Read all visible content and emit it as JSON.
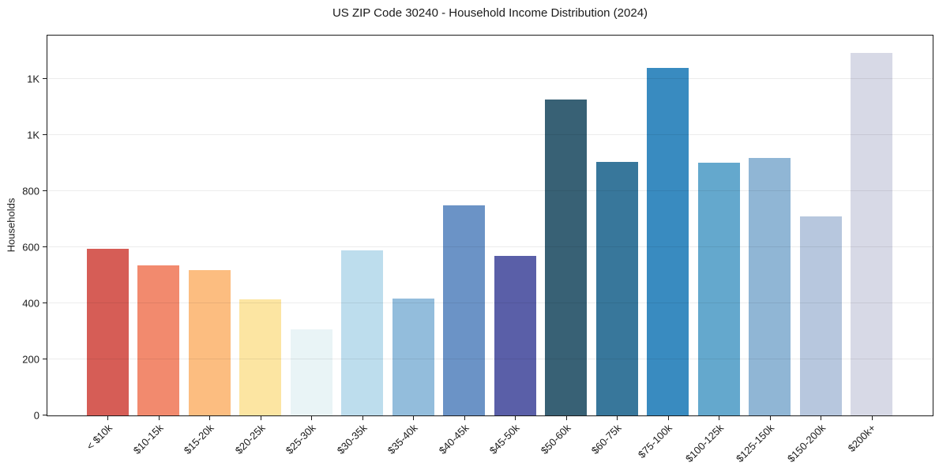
{
  "chart_data": {
    "type": "bar",
    "title": "US ZIP Code 30240 - Household Income Distribution (2024)",
    "xlabel": "",
    "ylabel": "Households",
    "categories": [
      "< $10k",
      "$10-15k",
      "$15-20k",
      "$20-25k",
      "$25-30k",
      "$30-35k",
      "$35-40k",
      "$40-45k",
      "$45-50k",
      "$50-60k",
      "$60-75k",
      "$75-100k",
      "$100-125k",
      "$125-150k",
      "$150-200k",
      "$200k+"
    ],
    "values": [
      595,
      535,
      518,
      415,
      306,
      588,
      417,
      750,
      568,
      1126,
      904,
      1239,
      902,
      918,
      709,
      1292
    ],
    "bar_colors": [
      "#d65d56",
      "#f28a6e",
      "#fcbd80",
      "#fce5a2",
      "#e9f4f6",
      "#bddded",
      "#93bddc",
      "#6b93c6",
      "#5a5fa8",
      "#386175",
      "#38779b",
      "#398bc0",
      "#64a8cd",
      "#90b6d5",
      "#b7c7de",
      "#d7d9e6"
    ],
    "ylim": [
      0,
      1360
    ],
    "yticks": {
      "values": [
        0,
        200,
        400,
        600,
        800,
        1000,
        1200
      ],
      "labels": [
        "0",
        "200",
        "400",
        "600",
        "800",
        "1K",
        "1K"
      ]
    },
    "grid": "horizontal",
    "legend": "none",
    "background_color": "#ffffff",
    "spine_color": "#1a1a1a",
    "gridline_color": "#ececec"
  }
}
